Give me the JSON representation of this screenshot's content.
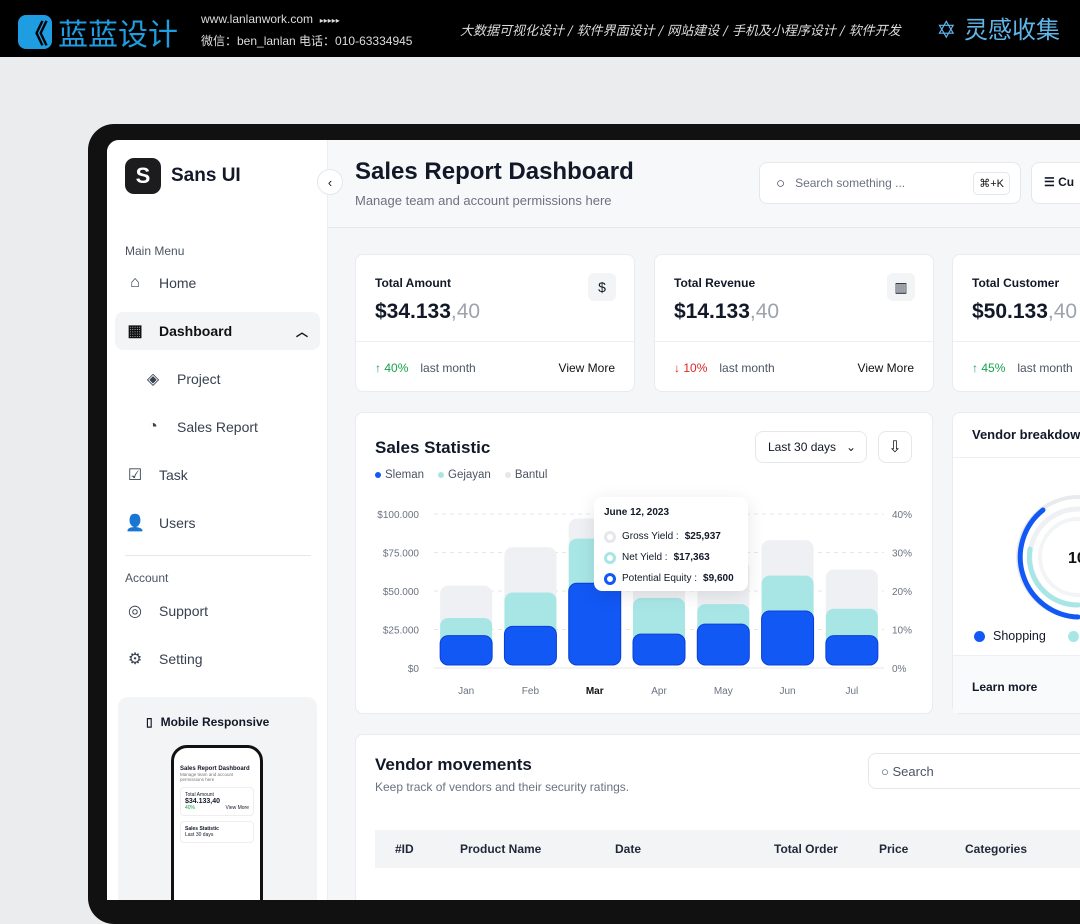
{
  "banner": {
    "logo_text": "蓝蓝设计",
    "website": "www.lanlanwork.com",
    "arrows": "▸▸▸▸▸",
    "contact": "微信：ben_lanlan    电话：010-63334945",
    "services": "大数据可视化设计 / 软件界面设计 / 网站建设 / 手机及小程序设计 / 软件开发",
    "brand2": "灵感收集"
  },
  "sidebar": {
    "app_name": "Sans UI",
    "main_menu": "Main Menu",
    "items": [
      {
        "label": "Home",
        "icon": "home-icon"
      },
      {
        "label": "Dashboard",
        "icon": "grid-icon"
      },
      {
        "label": "Project",
        "icon": "layers-icon"
      },
      {
        "label": "Sales Report",
        "icon": "pie-icon"
      },
      {
        "label": "Task",
        "icon": "task-icon"
      },
      {
        "label": "Users",
        "icon": "users-icon"
      }
    ],
    "account": "Account",
    "account_items": [
      {
        "label": "Support",
        "icon": "lifebuoy-icon"
      },
      {
        "label": "Setting",
        "icon": "gear-icon"
      }
    ],
    "mobile_title": "Mobile Responsive",
    "phone": {
      "title": "Sales Report Dashboard",
      "subtitle": "Manage team and account permissions here",
      "card_label": "Total Amount",
      "card_value": "$34.133,40",
      "card_change": "40%",
      "card_more": "View More",
      "stat": "Sales Statistic",
      "range": "Last 30 days"
    }
  },
  "header": {
    "title": "Sales Report Dashboard",
    "subtitle": "Manage team and account permissions here",
    "search_placeholder": "Search something ...",
    "shortcut": "⌘+K",
    "customize": "Cu"
  },
  "stats": [
    {
      "label": "Total Amount",
      "value": "$34.133",
      "decimals": ",40",
      "change": "40%",
      "direction": "up",
      "period": "last month",
      "more": "View More",
      "icon": "$"
    },
    {
      "label": "Total Revenue",
      "value": "$14.133",
      "decimals": ",40",
      "change": "10%",
      "direction": "down",
      "period": "last month",
      "more": "View More",
      "icon": "▥"
    },
    {
      "label": "Total Customer",
      "value": "$50.133",
      "decimals": ",40",
      "change": "45%",
      "direction": "up",
      "period": "last month"
    }
  ],
  "sales": {
    "title": "Sales Statistic",
    "range": "Last 30 days",
    "tooltip": {
      "date": "June 12, 2023",
      "rows": [
        {
          "label": "Gross Yield : ",
          "value": "$25,937",
          "color": "#e5e7eb"
        },
        {
          "label": "Net Yield : ",
          "value": "$17,363",
          "color": "#a8e6e6"
        },
        {
          "label": "Potential Equity : ",
          "value": "$9,600",
          "color": "#1258f5"
        }
      ]
    }
  },
  "chart_data": {
    "type": "bar",
    "categories": [
      "Jan",
      "Feb",
      "Mar",
      "Apr",
      "May",
      "Jun",
      "Jul"
    ],
    "highlight": "Mar",
    "series": [
      {
        "name": "Sleman",
        "color": "#1258f5",
        "values": [
          21000,
          27000,
          55000,
          22000,
          28500,
          37000,
          21000
        ]
      },
      {
        "name": "Gejayan",
        "color": "#a8e6e6",
        "values": [
          32500,
          49000,
          84000,
          45500,
          41500,
          60000,
          38500
        ]
      },
      {
        "name": "Bantul",
        "color": "#eef0f3",
        "values": [
          53500,
          78500,
          97000,
          73000,
          70000,
          83000,
          64000
        ]
      }
    ],
    "ylim": [
      0,
      100000
    ],
    "yticks": [
      "$0",
      "$25.000",
      "$50.000",
      "$75.000",
      "$100.000"
    ],
    "y2ticks": [
      "0%",
      "10%",
      "20%",
      "30%",
      "40%"
    ],
    "grid": true,
    "legend": "top-left"
  },
  "vendor": {
    "title": "Vendor breakdown",
    "center": "10",
    "legend": [
      "Shopping"
    ],
    "learn": "Learn more"
  },
  "movements": {
    "title": "Vendor movements",
    "subtitle": "Keep track of vendors and their security ratings.",
    "search": "Search",
    "columns": [
      "#ID",
      "Product Name",
      "Date",
      "Total Order",
      "Price",
      "Categories"
    ]
  }
}
